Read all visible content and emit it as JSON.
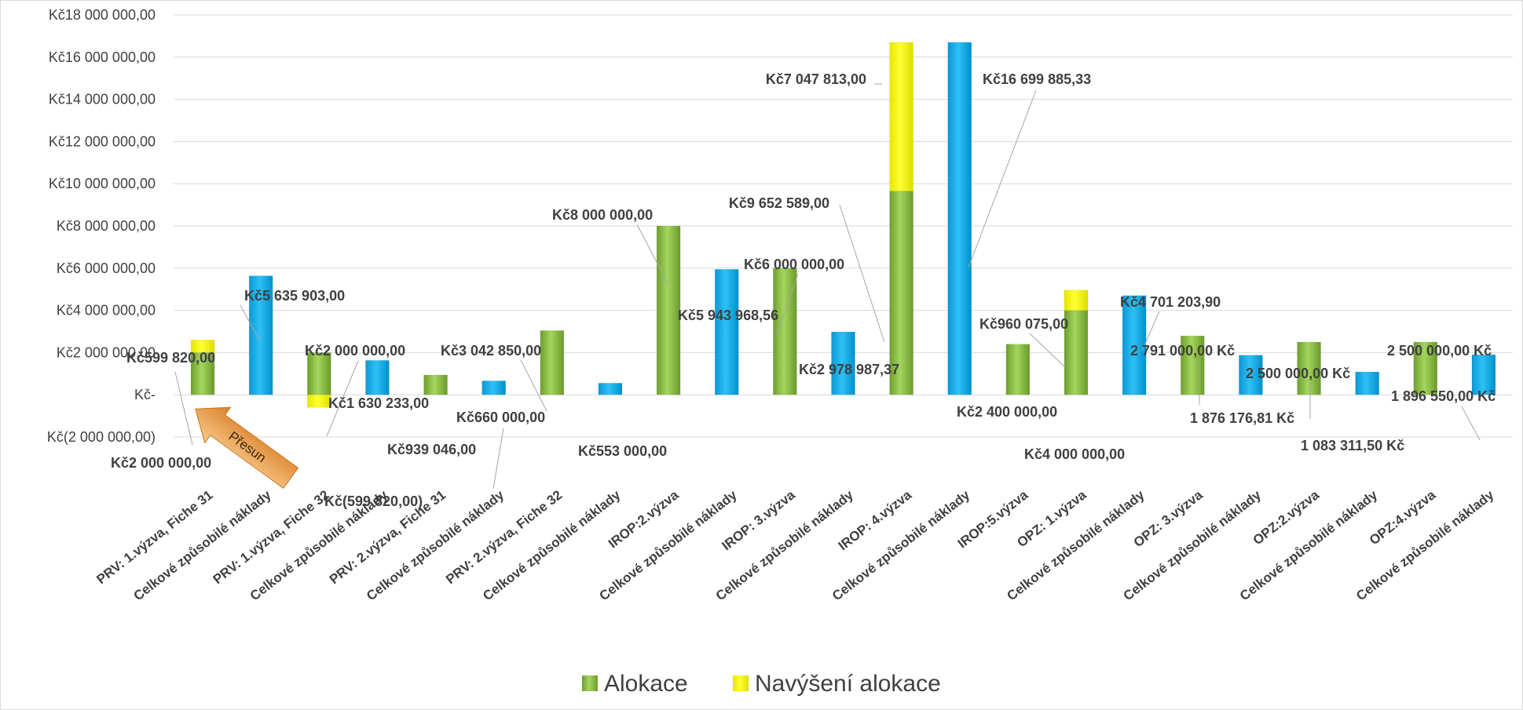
{
  "chart_data": {
    "type": "bar",
    "stacked": true,
    "ylim": [
      -2000000,
      18000000
    ],
    "grid": true,
    "legend_position": "bottom",
    "yticks": [
      "Kč(2 000 000,00)",
      "Kč-",
      "Kč2 000 000,00",
      "Kč4 000 000,00",
      "Kč6 000 000,00",
      "Kč8 000 000,00",
      "Kč10 000 000,00",
      "Kč12 000 000,00",
      "Kč14 000 000,00",
      "Kč16 000 000,00",
      "Kč18 000 000,00"
    ],
    "categories": [
      "PRV: 1.výzva, Fiche 31",
      "Celkové způsobilé náklady",
      "PRV: 1.výzva, Fiche 32",
      "Celkové způsobilé náklady",
      "PRV: 2.výzva, Fiche 31",
      "Celkové způsobilé náklady",
      "PRV: 2.výzva, Fiche 32",
      "Celkové způsobilé náklady",
      "IROP:2.výzva",
      "Celkové způsobilé náklady",
      "IROP: 3.výzva",
      "Celkové způsobilé náklady",
      "IROP: 4.výzva",
      "Celkové způsobilé náklady",
      "IROP:5.výzva",
      "OPZ: 1.výzva",
      "Celkové způsobilé náklady",
      "OPZ: 3.výzva",
      "Celkové způsobilé náklady",
      "OPZ:2.výzva",
      "Celkové způsobilé náklady",
      "OPZ:4.výzva",
      "Celkové způsobilé náklady"
    ],
    "series": [
      {
        "name": "Alokace",
        "color": "#8cc63f",
        "values": [
          2000000,
          null,
          2000000,
          null,
          939046,
          null,
          3042850,
          null,
          8000000,
          null,
          6000000,
          null,
          9652589,
          null,
          2400000,
          4000000,
          null,
          2791000,
          null,
          2500000,
          null,
          2500000,
          null
        ]
      },
      {
        "name": "Navýšení alokace",
        "color": "#ffff00",
        "values": [
          599820,
          null,
          -599820,
          null,
          null,
          null,
          null,
          null,
          null,
          null,
          null,
          null,
          7047813,
          null,
          null,
          960075,
          null,
          null,
          null,
          null,
          null,
          null,
          null
        ]
      },
      {
        "name": "",
        "color": "#00b0f0",
        "values": [
          null,
          5635903,
          null,
          1630233,
          null,
          660000,
          null,
          553000,
          null,
          5943968.56,
          null,
          2978987.37,
          null,
          16699885.33,
          null,
          null,
          4701203.9,
          null,
          1876176.81,
          null,
          1083311.5,
          null,
          1896550
        ]
      }
    ],
    "data_labels": [
      "Kč599 820,00",
      "Kč2 000 000,00",
      "Kč5 635 903,00",
      "Kč2 000 000,00",
      "Kč(599 820,00)",
      "Kč1 630 233,00",
      "Kč939 046,00",
      "Kč660 000,00",
      "Kč3 042 850,00",
      "Kč553 000,00",
      "Kč8 000 000,00",
      "Kč5 943 968,56",
      "Kč6 000 000,00",
      "Kč2 978 987,37",
      "Kč9 652 589,00",
      "Kč7 047 813,00",
      "Kč16 699 885,33",
      "Kč2 400 000,00",
      "Kč960 075,00",
      "Kč4 000 000,00",
      "Kč4 701 203,90",
      "2 791 000,00 Kč",
      "1 876 176,81 Kč",
      "2 500 000,00 Kč",
      "1 083 311,50 Kč",
      "2 500 000,00 Kč",
      "1 896 550,00 Kč"
    ],
    "annotation": "Přesun",
    "legend": [
      "Alokace",
      "Navýšení alokace"
    ]
  }
}
